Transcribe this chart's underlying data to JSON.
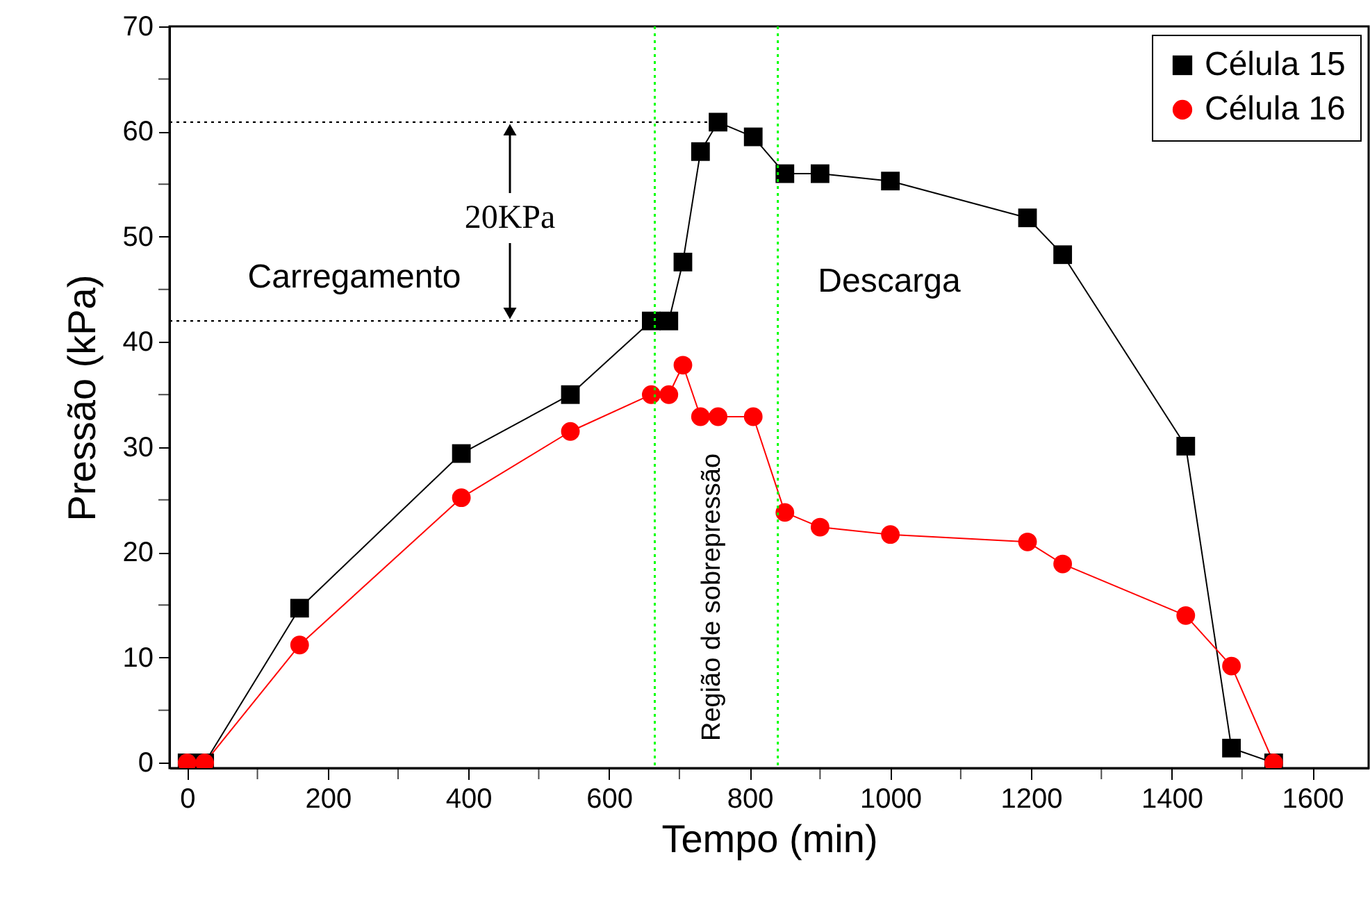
{
  "chart_data": {
    "type": "line",
    "xlabel": "Tempo (min)",
    "ylabel": "Pressão (kPa)",
    "x": [
      0,
      25,
      160,
      390,
      545,
      660,
      685,
      705,
      730,
      755,
      805,
      850,
      900,
      1000,
      1195,
      1245,
      1420,
      1485,
      1545
    ],
    "series": [
      {
        "name": "Célula 15",
        "color": "#000000",
        "marker": "square",
        "values": [
          0,
          0,
          14.7,
          29.4,
          35,
          42,
          42,
          47.6,
          58.1,
          60.9,
          59.5,
          56,
          56,
          55.3,
          51.8,
          48.3,
          30.1,
          1.4,
          0
        ]
      },
      {
        "name": "Célula 16",
        "color": "#ff0000",
        "marker": "circle",
        "values": [
          0,
          0,
          11.2,
          25.2,
          31.5,
          35,
          35,
          37.8,
          32.9,
          32.9,
          32.9,
          23.8,
          22.4,
          21.7,
          21,
          18.9,
          14,
          9.2,
          0
        ]
      }
    ],
    "xlim": [
      -25,
      1680
    ],
    "ylim": [
      -0.5,
      70
    ],
    "xticks": [
      0,
      200,
      400,
      600,
      800,
      1000,
      1200,
      1400,
      1600
    ],
    "yticks": [
      0,
      10,
      20,
      30,
      40,
      50,
      60,
      70
    ],
    "ref_lines": [
      {
        "axis": "x",
        "value": 665,
        "color": "#00ff00",
        "line_style": "dotted"
      },
      {
        "axis": "x",
        "value": 840,
        "color": "#00ff00",
        "line_style": "dotted"
      },
      {
        "axis": "y",
        "value": 60.9,
        "color": "#000000",
        "line_style": "dotted"
      },
      {
        "axis": "y",
        "value": 42,
        "color": "#000000",
        "line_style": "dotted"
      }
    ],
    "annotations": [
      "Carregamento",
      "20KPa",
      "Descarga",
      "Região de sobrepressão"
    ],
    "legend": "top right",
    "grid": false
  }
}
